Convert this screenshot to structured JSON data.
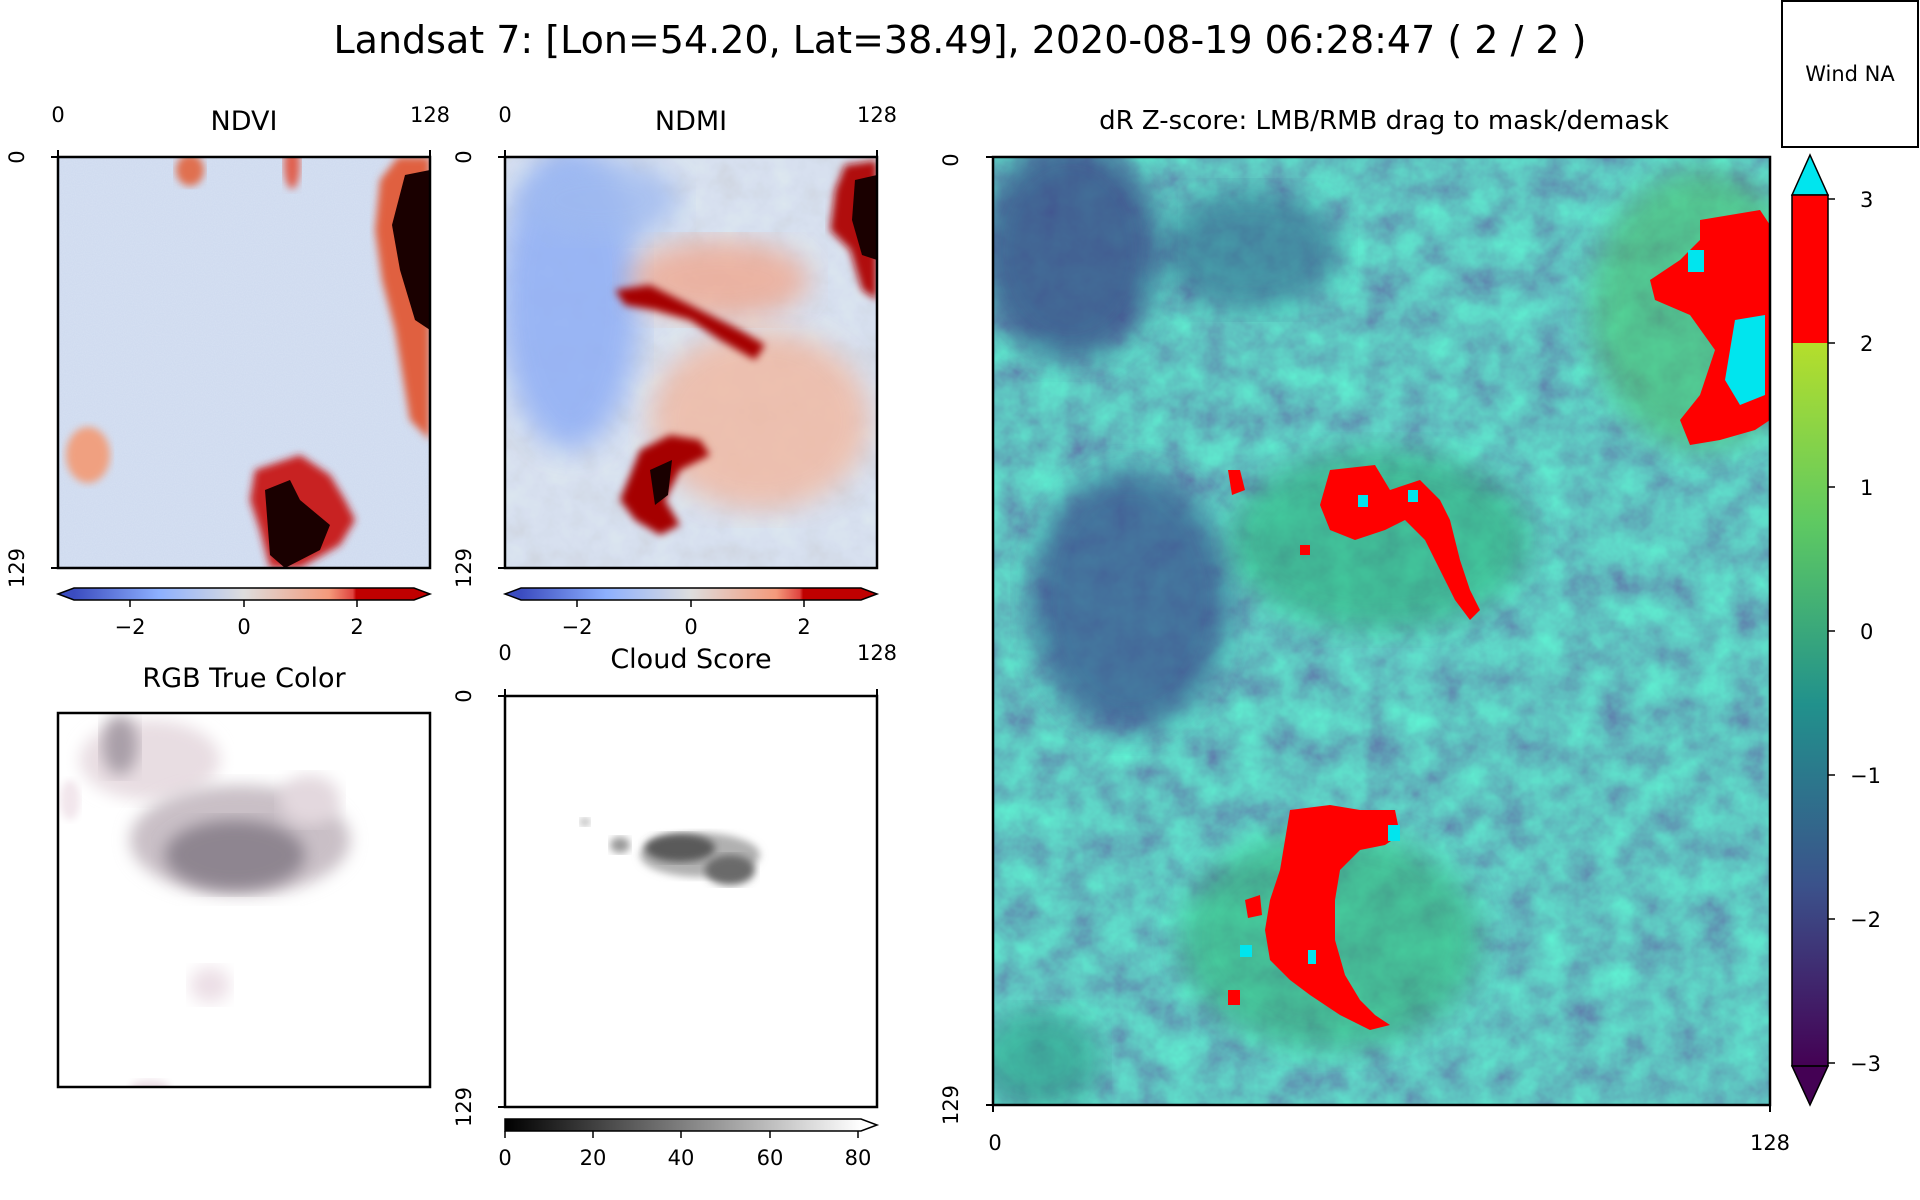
{
  "figure": {
    "title": "Landsat 7: [Lon=54.20, Lat=38.49], 2020-08-19 06:28:47 ( 2 / 2 )",
    "wind_label": "Wind NA"
  },
  "colors": {
    "background": "#ffffff",
    "mask_red": "#ff0000",
    "mask_cyan": "#00e5ee"
  },
  "chart_data": [
    {
      "id": "ndvi",
      "type": "heatmap",
      "title": "NDVI",
      "colormap": "coolwarm",
      "x_ticks": [
        "0",
        "128"
      ],
      "y_ticks": [
        "0",
        "129"
      ],
      "colorbar": {
        "ticks": [
          "−2",
          "0",
          "2"
        ],
        "range": [
          -3,
          3
        ],
        "extend": "both"
      },
      "features": [
        {
          "label": "high anomaly (top-right edge)",
          "value": 3
        },
        {
          "label": "high anomaly (bottom centre)",
          "value": 3
        },
        {
          "label": "moderate anomaly (left)",
          "value": 1.5
        }
      ]
    },
    {
      "id": "ndmi",
      "type": "heatmap",
      "title": "NDMI",
      "colormap": "coolwarm",
      "x_ticks": [
        "0",
        "128"
      ],
      "y_ticks": [
        "0",
        "129"
      ],
      "colorbar": {
        "ticks": [
          "−2",
          "0",
          "2"
        ],
        "range": [
          -3,
          3
        ],
        "extend": "both"
      },
      "features": [
        {
          "label": "high anomaly (top-right edge)",
          "value": 3
        },
        {
          "label": "high anomaly (centre streak)",
          "value": 3
        },
        {
          "label": "high anomaly (lower centre)",
          "value": 3
        },
        {
          "label": "negative region (left)",
          "value": -1
        }
      ]
    },
    {
      "id": "rgb",
      "type": "heatmap",
      "title": "RGB True Color",
      "content": "mostly white with a grey cloud in the upper centre"
    },
    {
      "id": "cloud",
      "type": "heatmap",
      "title": "Cloud Score",
      "colormap": "gray_r",
      "x_ticks": [
        "0",
        "128"
      ],
      "y_ticks": [
        "0",
        "129"
      ],
      "colorbar": {
        "ticks": [
          "0",
          "20",
          "40",
          "60",
          "80"
        ],
        "range": [
          0,
          85
        ],
        "extend": "max"
      },
      "features": [
        {
          "label": "cloud patch (upper centre)",
          "value": 55
        }
      ]
    },
    {
      "id": "dr",
      "type": "heatmap",
      "title": "dR Z-score: LMB/RMB drag to mask/demask",
      "colormap": "viridis",
      "x_ticks": [
        "0",
        "128"
      ],
      "y_ticks": [
        "0",
        "129"
      ],
      "colorbar": {
        "ticks": [
          "3",
          "2",
          "1",
          "0",
          "−1",
          "−2",
          "−3"
        ],
        "range": [
          -3,
          3
        ],
        "extend": "both",
        "over_color": "#00e5ee",
        "above_2_color": "#ff0000"
      },
      "features": [
        {
          "label": "red mask (right edge)",
          "value": 2.5
        },
        {
          "label": "red mask (centre)",
          "value": 2.5
        },
        {
          "label": "red mask (lower centre)",
          "value": 2.5
        },
        {
          "label": "low region (left)",
          "value": -1.5
        }
      ]
    }
  ]
}
